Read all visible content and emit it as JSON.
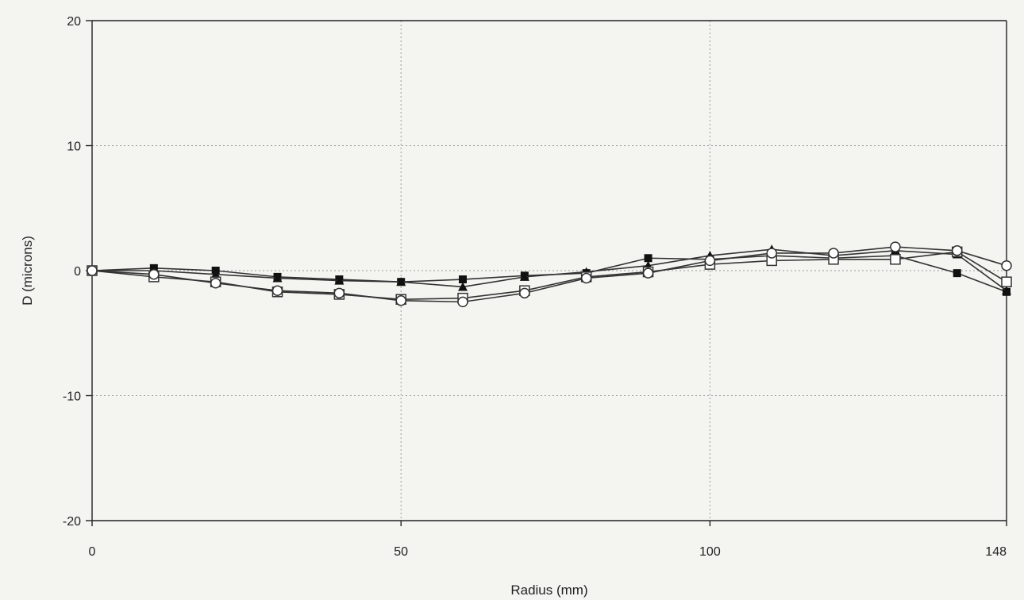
{
  "chart_data": {
    "type": "line",
    "xlabel": "Radius (mm)",
    "ylabel": "D (microns)",
    "xlim": [
      0,
      148
    ],
    "ylim": [
      -20,
      20
    ],
    "x_ticks": [
      0,
      50,
      100,
      148
    ],
    "y_ticks": [
      -20,
      -10,
      0,
      10,
      20
    ],
    "grid": "dotted horizontal and vertical",
    "x": [
      0,
      10,
      20,
      30,
      40,
      50,
      60,
      70,
      80,
      90,
      100,
      110,
      120,
      130,
      140,
      148
    ],
    "series": [
      {
        "marker": "filled-square",
        "values": [
          0,
          0.2,
          0,
          -0.5,
          -0.7,
          -0.9,
          -0.7,
          -0.4,
          -0.2,
          1.0,
          0.9,
          1.2,
          1.0,
          1.2,
          -0.2,
          -1.7
        ]
      },
      {
        "marker": "filled-triangle",
        "values": [
          0,
          0,
          -0.3,
          -0.6,
          -0.8,
          -0.9,
          -1.3,
          -0.5,
          -0.1,
          0.4,
          1.2,
          1.7,
          1.2,
          1.6,
          1.3,
          -1.6
        ]
      },
      {
        "marker": "open-square",
        "values": [
          0,
          -0.5,
          -0.9,
          -1.7,
          -1.9,
          -2.3,
          -2.2,
          -1.6,
          -0.5,
          -0.1,
          0.5,
          0.8,
          0.9,
          0.9,
          1.5,
          -0.9
        ]
      },
      {
        "marker": "open-circle",
        "values": [
          0,
          -0.3,
          -1.0,
          -1.6,
          -1.8,
          -2.4,
          -2.5,
          -1.8,
          -0.6,
          -0.2,
          0.8,
          1.4,
          1.4,
          1.9,
          1.6,
          0.4
        ]
      }
    ]
  }
}
